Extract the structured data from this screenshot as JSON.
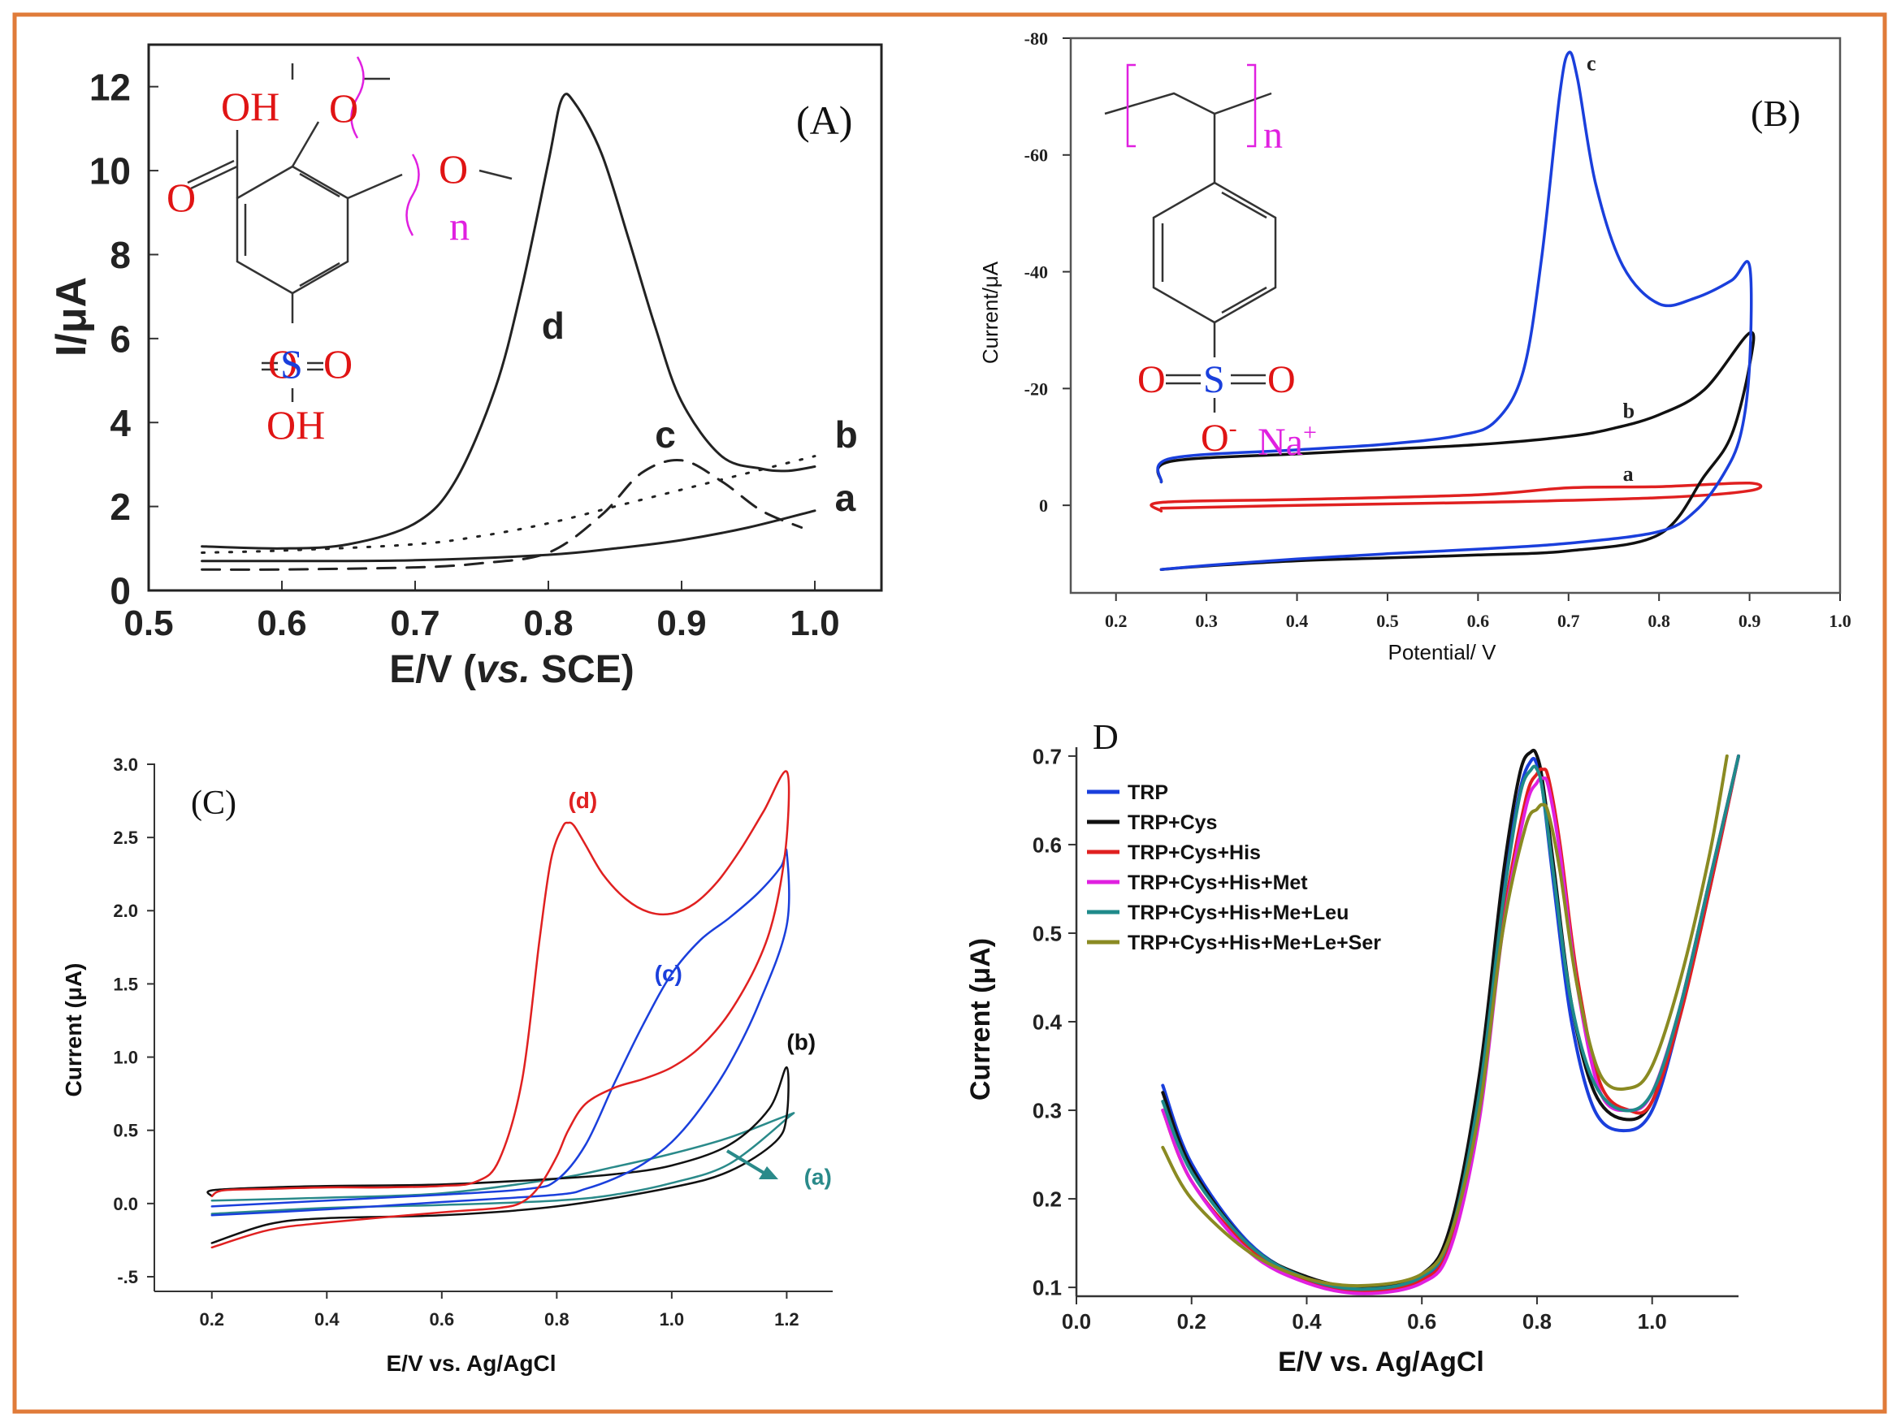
{
  "figure": {
    "frame_color": "#e07b39"
  },
  "chart_data": [
    {
      "panel": "(A)",
      "type": "line",
      "panel_label": "(A)",
      "xlabel_prefix": "E/V (",
      "xlabel_italic": "vs.",
      "xlabel_suffix": " SCE)",
      "ylabel": "I/μA",
      "xlim": [
        0.5,
        1.05
      ],
      "ylim": [
        0,
        13
      ],
      "x_ticks": [
        0.5,
        0.6,
        0.7,
        0.8,
        0.9,
        1.0
      ],
      "x_tick_labels": [
        "0.5",
        "0.6",
        "0.7",
        "0.8",
        "0.9",
        "1.0"
      ],
      "y_ticks": [
        0,
        2,
        4,
        6,
        8,
        10,
        12
      ],
      "y_tick_labels": [
        "0",
        "2",
        "4",
        "6",
        "8",
        "10",
        "12"
      ],
      "series": [
        {
          "name": "a",
          "color": "#222222",
          "style": "solid",
          "x": [
            0.54,
            0.6,
            0.7,
            0.8,
            0.85,
            0.9,
            0.95,
            1.0
          ],
          "y": [
            0.7,
            0.7,
            0.72,
            0.85,
            1.0,
            1.2,
            1.5,
            1.9
          ]
        },
        {
          "name": "b",
          "color": "#222222",
          "style": "dotted",
          "x": [
            0.54,
            0.6,
            0.7,
            0.75,
            0.8,
            0.85,
            0.9,
            0.95,
            1.0
          ],
          "y": [
            0.9,
            0.95,
            1.1,
            1.3,
            1.6,
            2.0,
            2.4,
            2.8,
            3.2
          ]
        },
        {
          "name": "c",
          "color": "#222222",
          "style": "dashed",
          "x": [
            0.54,
            0.6,
            0.7,
            0.75,
            0.8,
            0.84,
            0.87,
            0.9,
            0.93,
            0.96,
            0.99
          ],
          "y": [
            0.5,
            0.5,
            0.55,
            0.65,
            0.9,
            1.8,
            2.8,
            3.1,
            2.6,
            1.9,
            1.5
          ]
        },
        {
          "name": "d",
          "color": "#222222",
          "style": "solid",
          "x": [
            0.54,
            0.6,
            0.65,
            0.7,
            0.73,
            0.76,
            0.78,
            0.8,
            0.81,
            0.82,
            0.84,
            0.86,
            0.88,
            0.9,
            0.93,
            0.96,
            0.98,
            1.0
          ],
          "y": [
            1.05,
            1.0,
            1.1,
            1.6,
            2.6,
            4.8,
            7.2,
            10.2,
            11.7,
            11.6,
            10.4,
            8.4,
            6.3,
            4.5,
            3.2,
            2.9,
            2.85,
            2.95
          ]
        }
      ],
      "curve_labels": [
        {
          "text": "d",
          "x": 0.795,
          "y": 6.0
        },
        {
          "text": "c",
          "x": 0.88,
          "y": 3.4
        },
        {
          "text": "b",
          "x": 1.015,
          "y": 3.4
        },
        {
          "text": "a",
          "x": 1.015,
          "y": 1.9
        }
      ],
      "structure": {
        "oh_top": "OH",
        "o_carbonyl": "O",
        "o_ether1": "O",
        "o_ether2": "O",
        "n": "n",
        "o_left": "O",
        "s": "S",
        "o_right": "O",
        "oh_bottom": "OH"
      }
    },
    {
      "panel": "(B)",
      "type": "line",
      "panel_label": "(B)",
      "xlabel": "Potential/ V",
      "ylabel": "Current/μA",
      "xlim": [
        0.15,
        1.0
      ],
      "ylim": [
        15,
        -80
      ],
      "x_ticks": [
        0.2,
        0.3,
        0.4,
        0.5,
        0.6,
        0.7,
        0.8,
        0.9,
        1.0
      ],
      "x_tick_labels": [
        "0.2",
        "0.3",
        "0.4",
        "0.5",
        "0.6",
        "0.7",
        "0.8",
        "0.9",
        "1.0"
      ],
      "y_ticks": [
        0,
        -20,
        -40,
        -60,
        -80
      ],
      "y_tick_labels": [
        "0",
        "-20",
        "-40",
        "-60",
        "-80"
      ],
      "series": [
        {
          "name": "a",
          "color": "#e02020",
          "x": [
            0.25,
            0.25,
            0.4,
            0.6,
            0.7,
            0.8,
            0.9,
            0.9,
            0.8,
            0.6,
            0.4,
            0.25
          ],
          "y": [
            1.0,
            -0.5,
            -1.0,
            -1.8,
            -3.0,
            -3.2,
            -3.8,
            -2.5,
            -1.3,
            -0.5,
            0.0,
            0.5
          ]
        },
        {
          "name": "b",
          "color": "#111111",
          "x": [
            0.25,
            0.26,
            0.4,
            0.5,
            0.6,
            0.7,
            0.75,
            0.8,
            0.85,
            0.9,
            0.9,
            0.88,
            0.85,
            0.8,
            0.7,
            0.6,
            0.5,
            0.4,
            0.3,
            0.25
          ],
          "y": [
            -4.0,
            -7.5,
            -8.8,
            -9.6,
            -10.4,
            -11.8,
            -13.2,
            -15.5,
            -19.8,
            -29.5,
            -24.0,
            -12.0,
            -5.0,
            5.0,
            7.8,
            8.5,
            9.0,
            9.5,
            10.4,
            11.0
          ]
        },
        {
          "name": "c",
          "color": "#1a3fdc",
          "x": [
            0.25,
            0.26,
            0.4,
            0.5,
            0.58,
            0.62,
            0.65,
            0.67,
            0.69,
            0.7,
            0.71,
            0.73,
            0.76,
            0.8,
            0.84,
            0.88,
            0.9,
            0.9,
            0.89,
            0.87,
            0.84,
            0.8,
            0.7,
            0.6,
            0.5,
            0.4,
            0.3,
            0.25
          ],
          "y": [
            -4.0,
            -8.0,
            -9.5,
            -10.5,
            -12.0,
            -14.5,
            -23.0,
            -42.0,
            -70.0,
            -77.5,
            -73.0,
            -55.0,
            -41.0,
            -34.5,
            -35.5,
            -38.5,
            -41.0,
            -24.0,
            -12.0,
            -5.0,
            1.0,
            4.5,
            6.5,
            7.5,
            8.3,
            9.2,
            10.3,
            11.0
          ]
        }
      ],
      "curve_labels": [
        {
          "text": "c",
          "x": 0.72,
          "y": -74.5
        },
        {
          "text": "b",
          "x": 0.76,
          "y": -15.0
        },
        {
          "text": "a",
          "x": 0.76,
          "y": -4.2
        }
      ],
      "structure": {
        "n": "n",
        "o_left": "O",
        "s": "S",
        "o_right": "O",
        "o_minus": "O",
        "minus": "-",
        "na": "Na",
        "plus": "+"
      }
    },
    {
      "panel": "(C)",
      "type": "line",
      "panel_label": "(C)",
      "xlabel": "E/V vs. Ag/AgCl",
      "ylabel": "Current (μA)",
      "xlim": [
        0.1,
        1.28
      ],
      "ylim": [
        -0.6,
        3.05
      ],
      "x_ticks": [
        0.2,
        0.4,
        0.6,
        0.8,
        1.0,
        1.2
      ],
      "x_tick_labels": [
        "0.2",
        "0.4",
        "0.6",
        "0.8",
        "1.0",
        "1.2"
      ],
      "y_ticks": [
        -0.5,
        0.0,
        0.5,
        1.0,
        1.5,
        2.0,
        2.5,
        3.0
      ],
      "y_tick_labels": [
        "-.5",
        "0.0",
        "0.5",
        "1.0",
        "1.5",
        "2.0",
        "2.5",
        "3.0"
      ],
      "series": [
        {
          "name": "(a)",
          "color": "#2a8a8a",
          "x": [
            0.2,
            0.4,
            0.6,
            0.8,
            0.9,
            1.0,
            1.1,
            1.2,
            1.2,
            1.1,
            1.0,
            0.9,
            0.8,
            0.6,
            0.4,
            0.2
          ],
          "y": [
            -0.07,
            -0.03,
            -0.01,
            0.02,
            0.06,
            0.14,
            0.27,
            0.58,
            0.6,
            0.45,
            0.34,
            0.25,
            0.17,
            0.07,
            0.04,
            0.02
          ]
        },
        {
          "name": "(b)",
          "color": "#111111",
          "x": [
            0.2,
            0.2,
            0.3,
            0.4,
            0.6,
            0.8,
            0.9,
            1.0,
            1.1,
            1.17,
            1.2,
            1.2,
            1.18,
            1.1,
            1.0,
            0.8,
            0.6,
            0.4,
            0.3,
            0.2
          ],
          "y": [
            0.05,
            0.09,
            0.11,
            0.12,
            0.13,
            0.17,
            0.2,
            0.26,
            0.4,
            0.65,
            0.93,
            0.6,
            0.42,
            0.22,
            0.11,
            -0.02,
            -0.08,
            -0.1,
            -0.14,
            -0.27
          ]
        },
        {
          "name": "(c)",
          "color": "#1a3fdc",
          "x": [
            0.2,
            0.4,
            0.6,
            0.75,
            0.8,
            0.85,
            0.9,
            0.95,
            1.0,
            1.05,
            1.1,
            1.15,
            1.19,
            1.2,
            1.2,
            1.15,
            1.1,
            1.05,
            1.0,
            0.95,
            0.9,
            0.85,
            0.8,
            0.6,
            0.4,
            0.2
          ],
          "y": [
            -0.02,
            0.02,
            0.06,
            0.1,
            0.16,
            0.4,
            0.82,
            1.22,
            1.57,
            1.8,
            1.95,
            2.12,
            2.3,
            2.4,
            1.9,
            1.35,
            0.95,
            0.65,
            0.42,
            0.27,
            0.17,
            0.1,
            0.06,
            0.01,
            -0.04,
            -0.08
          ]
        },
        {
          "name": "(d)",
          "color": "#e02020",
          "x": [
            0.2,
            0.22,
            0.3,
            0.4,
            0.5,
            0.6,
            0.66,
            0.7,
            0.74,
            0.77,
            0.79,
            0.81,
            0.82,
            0.83,
            0.85,
            0.88,
            0.92,
            0.96,
            1.0,
            1.04,
            1.08,
            1.12,
            1.16,
            1.2,
            1.2,
            1.18,
            1.15,
            1.1,
            1.05,
            1.0,
            0.95,
            0.9,
            0.85,
            0.82,
            0.8,
            0.77,
            0.74,
            0.7,
            0.6,
            0.4,
            0.3,
            0.2
          ],
          "y": [
            0.05,
            0.09,
            0.1,
            0.11,
            0.11,
            0.12,
            0.15,
            0.3,
            0.85,
            1.8,
            2.35,
            2.57,
            2.6,
            2.58,
            2.45,
            2.25,
            2.08,
            1.99,
            1.98,
            2.05,
            2.2,
            2.42,
            2.68,
            2.95,
            2.5,
            2.0,
            1.65,
            1.3,
            1.07,
            0.93,
            0.85,
            0.79,
            0.68,
            0.5,
            0.32,
            0.12,
            0.01,
            -0.03,
            -0.06,
            -0.13,
            -0.18,
            -0.3
          ]
        }
      ],
      "curve_labels": [
        {
          "text": "(d)",
          "color": "#e02020",
          "x": 0.82,
          "y": 2.7
        },
        {
          "text": "(c)",
          "color": "#1a3fdc",
          "x": 0.97,
          "y": 1.52
        },
        {
          "text": "(b)",
          "color": "#111111",
          "x": 1.2,
          "y": 1.05
        },
        {
          "text": "(a)",
          "color": "#2a8a8a",
          "x": 1.23,
          "y": 0.13
        }
      ]
    },
    {
      "panel": "D",
      "type": "line",
      "panel_label": "D",
      "xlabel": "E/V vs. Ag/AgCl",
      "ylabel": "Current (μA)",
      "xlim": [
        0.0,
        1.15
      ],
      "ylim": [
        0.09,
        0.71
      ],
      "x_ticks": [
        0.0,
        0.2,
        0.4,
        0.6,
        0.8,
        1.0
      ],
      "x_tick_labels": [
        "0.0",
        "0.2",
        "0.4",
        "0.6",
        "0.8",
        "1.0"
      ],
      "y_ticks": [
        0.1,
        0.2,
        0.3,
        0.4,
        0.5,
        0.6,
        0.7
      ],
      "y_tick_labels": [
        "0.1",
        "0.2",
        "0.3",
        "0.4",
        "0.5",
        "0.6",
        "0.7"
      ],
      "series": [
        {
          "name": "TRP",
          "color": "#1a3fdc",
          "x": [
            0.15,
            0.2,
            0.3,
            0.4,
            0.5,
            0.6,
            0.65,
            0.7,
            0.74,
            0.77,
            0.79,
            0.8,
            0.81,
            0.83,
            0.86,
            0.9,
            0.95,
            1.0,
            1.05,
            1.1,
            1.15
          ],
          "y": [
            0.328,
            0.24,
            0.15,
            0.11,
            0.097,
            0.11,
            0.16,
            0.32,
            0.54,
            0.66,
            0.695,
            0.69,
            0.66,
            0.55,
            0.4,
            0.3,
            0.277,
            0.3,
            0.41,
            0.55,
            0.7
          ]
        },
        {
          "name": "TRP+Cys",
          "color": "#111111",
          "x": [
            0.15,
            0.2,
            0.3,
            0.4,
            0.5,
            0.6,
            0.65,
            0.7,
            0.74,
            0.77,
            0.79,
            0.8,
            0.81,
            0.83,
            0.86,
            0.9,
            0.95,
            1.0,
            1.05,
            1.1,
            1.15
          ],
          "y": [
            0.32,
            0.235,
            0.148,
            0.112,
            0.1,
            0.115,
            0.17,
            0.34,
            0.56,
            0.68,
            0.705,
            0.7,
            0.67,
            0.57,
            0.42,
            0.32,
            0.29,
            0.31,
            0.42,
            0.56,
            0.7
          ]
        },
        {
          "name": "TRP+Cys+His",
          "color": "#e02020",
          "x": [
            0.15,
            0.2,
            0.3,
            0.4,
            0.5,
            0.6,
            0.65,
            0.7,
            0.74,
            0.78,
            0.8,
            0.81,
            0.82,
            0.84,
            0.87,
            0.91,
            0.96,
            1.0,
            1.05,
            1.1,
            1.15
          ],
          "y": [
            0.3,
            0.22,
            0.145,
            0.108,
            0.095,
            0.108,
            0.15,
            0.3,
            0.51,
            0.65,
            0.68,
            0.685,
            0.675,
            0.6,
            0.45,
            0.33,
            0.3,
            0.31,
            0.41,
            0.55,
            0.7
          ]
        },
        {
          "name": "TRP+Cys+His+Met",
          "color": "#e020e0",
          "x": [
            0.15,
            0.2,
            0.3,
            0.4,
            0.5,
            0.6,
            0.65,
            0.7,
            0.74,
            0.78,
            0.8,
            0.81,
            0.82,
            0.84,
            0.87,
            0.91,
            0.96,
            1.0,
            1.05,
            1.1,
            1.15
          ],
          "y": [
            0.3,
            0.22,
            0.14,
            0.105,
            0.093,
            0.105,
            0.145,
            0.29,
            0.5,
            0.64,
            0.67,
            0.675,
            0.665,
            0.59,
            0.44,
            0.32,
            0.3,
            0.32,
            0.42,
            0.56,
            0.7
          ]
        },
        {
          "name": "TRP+Cys+His+Me+Leu",
          "color": "#1f8a8a",
          "x": [
            0.15,
            0.2,
            0.3,
            0.4,
            0.5,
            0.6,
            0.65,
            0.7,
            0.74,
            0.77,
            0.79,
            0.8,
            0.81,
            0.83,
            0.86,
            0.9,
            0.95,
            1.0,
            1.05,
            1.1,
            1.15
          ],
          "y": [
            0.31,
            0.23,
            0.148,
            0.11,
            0.098,
            0.112,
            0.16,
            0.32,
            0.53,
            0.655,
            0.685,
            0.685,
            0.66,
            0.56,
            0.42,
            0.33,
            0.3,
            0.32,
            0.42,
            0.56,
            0.7
          ]
        },
        {
          "name": "TRP+Cys+His+Me+Le+Ser",
          "color": "#8a8a22",
          "x": [
            0.15,
            0.2,
            0.3,
            0.4,
            0.5,
            0.6,
            0.65,
            0.7,
            0.74,
            0.78,
            0.8,
            0.81,
            0.82,
            0.84,
            0.87,
            0.91,
            0.96,
            1.0,
            1.05,
            1.1,
            1.13
          ],
          "y": [
            0.258,
            0.2,
            0.14,
            0.11,
            0.102,
            0.115,
            0.16,
            0.3,
            0.5,
            0.62,
            0.64,
            0.645,
            0.635,
            0.57,
            0.44,
            0.34,
            0.325,
            0.35,
            0.45,
            0.59,
            0.7
          ]
        }
      ]
    }
  ]
}
